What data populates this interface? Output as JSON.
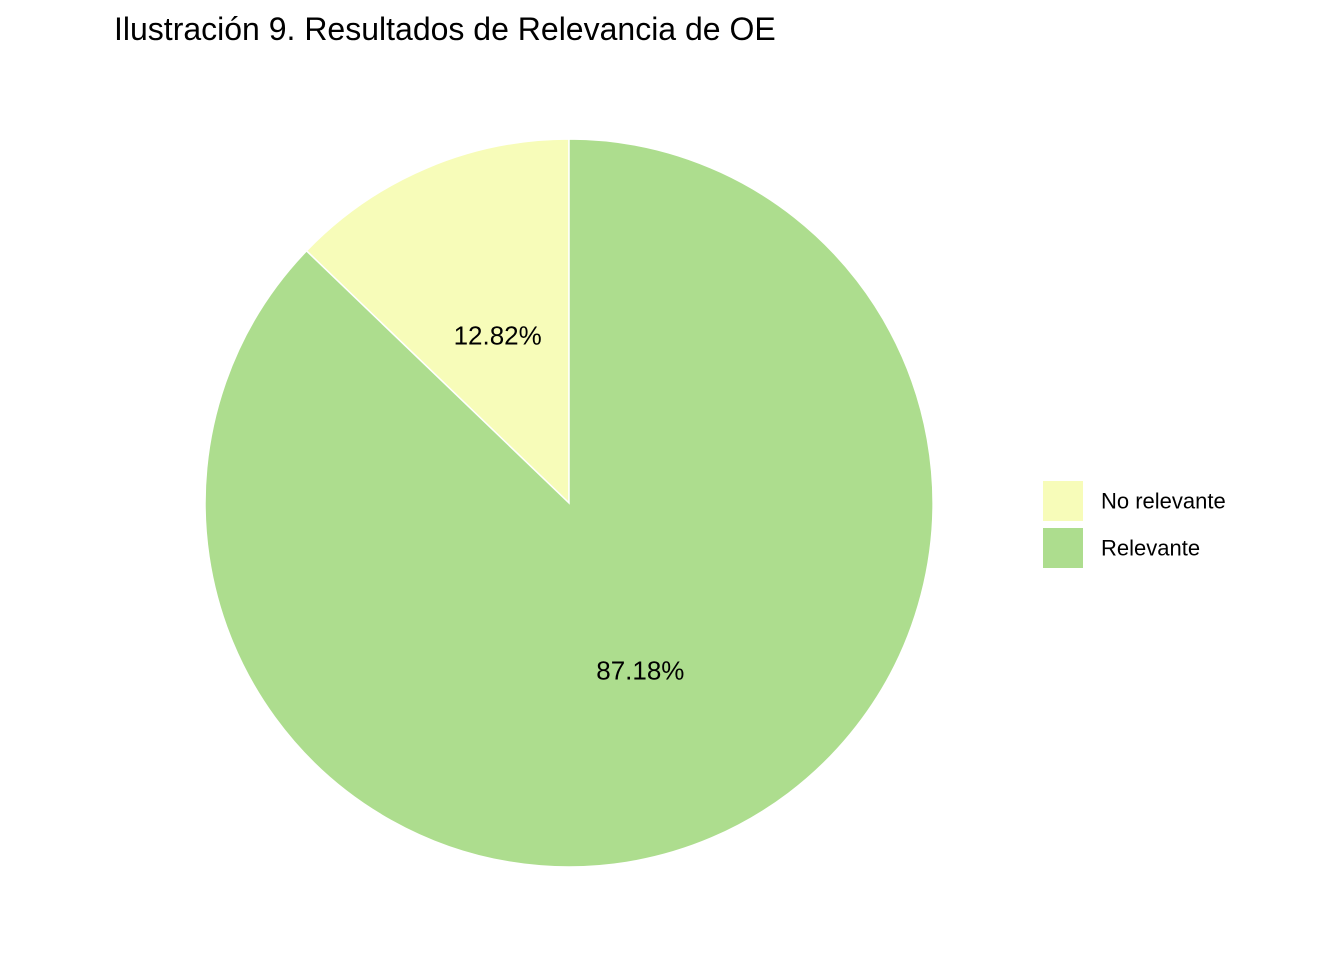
{
  "chart_data": {
    "type": "pie",
    "title": "Ilustración 9. Resultados de Relevancia de OE",
    "categories": [
      "No relevante",
      "Relevante"
    ],
    "values": [
      12.82,
      87.18
    ],
    "labels": [
      "12.82%",
      "87.18%"
    ],
    "colors": [
      "#f7fcb9",
      "#addd8e"
    ],
    "legend_title": "",
    "legend": {
      "position": "right",
      "entries": [
        "No relevante",
        "Relevante"
      ]
    },
    "start_angle_deg": 0,
    "direction": "counterclockwise"
  }
}
